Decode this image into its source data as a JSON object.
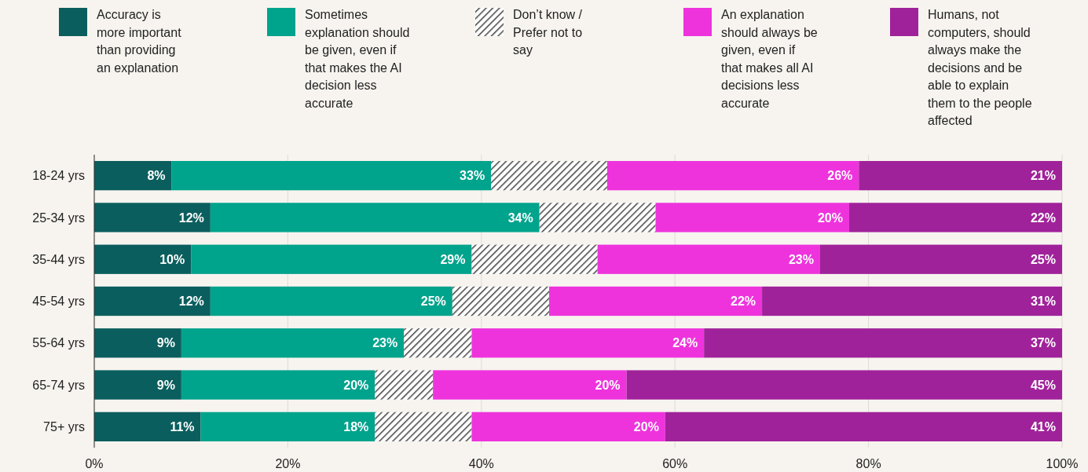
{
  "chart_data": {
    "type": "bar",
    "orientation": "horizontal",
    "stacked": true,
    "categories": [
      "18-24 yrs",
      "25-34 yrs",
      "35-44 yrs",
      "45-54 yrs",
      "55-64 yrs",
      "65-74 yrs",
      "75+ yrs"
    ],
    "series": [
      {
        "name": "Accuracy is more important than providing an explanation",
        "color": "#0b5e5e",
        "values": [
          8,
          12,
          10,
          12,
          9,
          9,
          11
        ],
        "value_labels": [
          "8%",
          "12%",
          "10%",
          "12%",
          "9%",
          "9%",
          "11%"
        ]
      },
      {
        "name": "Sometimes explanation should be given, even if that makes the AI decision less accurate",
        "color": "#00a38c",
        "values": [
          33,
          34,
          29,
          25,
          23,
          20,
          18
        ],
        "value_labels": [
          "33%",
          "34%",
          "29%",
          "25%",
          "23%",
          "20%",
          "18%"
        ]
      },
      {
        "name": "Don’t know / Prefer not to say",
        "color": "#444444",
        "values": [
          12,
          12,
          13,
          10,
          7,
          6,
          10
        ]
      },
      {
        "name": "An explanation should always be given, even if that makes all AI decisions less accurate",
        "color": "#ee33dd",
        "values": [
          26,
          20,
          23,
          22,
          24,
          20,
          20
        ],
        "value_labels": [
          "26%",
          "20%",
          "23%",
          "22%",
          "24%",
          "20%",
          "20%"
        ]
      },
      {
        "name": "Humans, not computers, should always make the decisions and be able to explain them to the people affected",
        "color": "#a0229a",
        "values": [
          21,
          22,
          25,
          31,
          37,
          45,
          41
        ],
        "value_labels": [
          "21%",
          "22%",
          "25%",
          "31%",
          "37%",
          "45%",
          "41%"
        ]
      }
    ],
    "xlim": [
      0,
      100
    ],
    "xticks": [
      {
        "value": 0,
        "label": "0%"
      },
      {
        "value": 20,
        "label": "20%"
      },
      {
        "value": 40,
        "label": "40%"
      },
      {
        "value": 60,
        "label": "60%"
      },
      {
        "value": 80,
        "label": "80%"
      },
      {
        "value": 100,
        "label": "100%"
      }
    ],
    "grid": "x",
    "legend": "top"
  }
}
